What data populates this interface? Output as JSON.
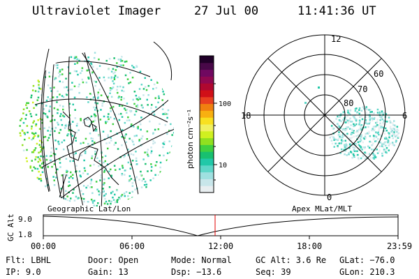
{
  "header": {
    "instrument": "Ultraviolet Imager",
    "date": "27 Jul 00",
    "time": "11:41:36 UT"
  },
  "colorbar": {
    "unit_label": "photon cm⁻²s⁻¹",
    "tick_labels": [
      "100",
      "10"
    ],
    "colors": [
      "#e8eef0",
      "#c8e6ea",
      "#9fe0e0",
      "#5fd6c8",
      "#22c8a8",
      "#18c070",
      "#40d040",
      "#90e020",
      "#d0f020",
      "#f0f060",
      "#f8e020",
      "#f8b010",
      "#f08010",
      "#e84020",
      "#d01018",
      "#b00830",
      "#900850",
      "#700860",
      "#480848",
      "#200028"
    ]
  },
  "polar_plot": {
    "mlt_labels": {
      "top": "12",
      "left": "18",
      "right": "6",
      "bottom": "0"
    },
    "lat_labels": [
      "60",
      "70",
      "80"
    ]
  },
  "altitude_strip": {
    "left_label": "Geographic Lat/Lon",
    "right_label": "Apex MLat/MLT",
    "axis_title": "GC Alt",
    "y_ticks": [
      "9.0",
      "1.8"
    ],
    "x_ticks": [
      "00:00",
      "06:00",
      "12:00",
      "18:00",
      "23:59"
    ],
    "current_time_color": "#e00000"
  },
  "info": {
    "flt": "Flt: LBHL",
    "door": "Door: Open",
    "mode": "Mode: Normal",
    "gc_alt": "GC Alt: 3.6 Re",
    "glat": "GLat: −76.0",
    "ip": "IP:  9.0",
    "gain": "Gain: 13",
    "dsp": "Dsp:  −13.6",
    "seq": "Seq: 39",
    "glon": "GLon: 210.3"
  }
}
